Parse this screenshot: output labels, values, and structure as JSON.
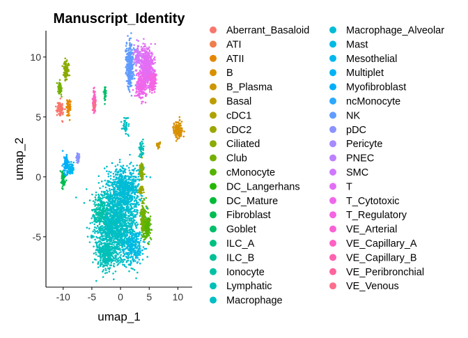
{
  "chart_data": {
    "type": "scatter",
    "title": "Manuscript_Identity",
    "xlabel": "umap_1",
    "ylabel": "umap_2",
    "xlim": [
      -13,
      12.5
    ],
    "ylim": [
      -9.2,
      12.2
    ],
    "x_ticks": [
      -10,
      -5,
      0,
      5,
      10
    ],
    "y_ticks": [
      -5,
      0,
      5,
      10
    ],
    "x_tick_labels": [
      "-10",
      "-5",
      "0",
      "5",
      "10"
    ],
    "y_tick_labels": [
      "-5",
      "0",
      "5",
      "10"
    ],
    "grid": false,
    "legend_position": "right",
    "series": [
      {
        "name": "Aberrant_Basaloid",
        "color": "#F8766D"
      },
      {
        "name": "ATI",
        "color": "#F07E4C"
      },
      {
        "name": "ATII",
        "color": "#E58700"
      },
      {
        "name": "B",
        "color": "#D89000"
      },
      {
        "name": "B_Plasma",
        "color": "#CC9600"
      },
      {
        "name": "Basal",
        "color": "#BE9C00"
      },
      {
        "name": "cDC1",
        "color": "#AEA200"
      },
      {
        "name": "cDC2",
        "color": "#9DA700"
      },
      {
        "name": "Ciliated",
        "color": "#8AAB00"
      },
      {
        "name": "Club",
        "color": "#73B000"
      },
      {
        "name": "cMonocyte",
        "color": "#55B300"
      },
      {
        "name": "DC_Langerhans",
        "color": "#24B700"
      },
      {
        "name": "DC_Mature",
        "color": "#00BA38"
      },
      {
        "name": "Fibroblast",
        "color": "#00BC52"
      },
      {
        "name": "Goblet",
        "color": "#00BE6A"
      },
      {
        "name": "ILC_A",
        "color": "#00C07F"
      },
      {
        "name": "ILC_B",
        "color": "#00C094"
      },
      {
        "name": "Ionocyte",
        "color": "#00C1A6"
      },
      {
        "name": "Lymphatic",
        "color": "#00C0B8"
      },
      {
        "name": "Macrophage",
        "color": "#00BFC4"
      },
      {
        "name": "Macrophage_Alveolar",
        "color": "#00BCD6"
      },
      {
        "name": "Mast",
        "color": "#00BAE4"
      },
      {
        "name": "Mesothelial",
        "color": "#00B7EE"
      },
      {
        "name": "Multiplet",
        "color": "#00B3F4"
      },
      {
        "name": "Myofibroblast",
        "color": "#00AEFA"
      },
      {
        "name": "ncMonocyte",
        "color": "#2CA8FF"
      },
      {
        "name": "NK",
        "color": "#619CFF"
      },
      {
        "name": "pDC",
        "color": "#8B93FF"
      },
      {
        "name": "Pericyte",
        "color": "#A68AFF"
      },
      {
        "name": "PNEC",
        "color": "#BD80FF"
      },
      {
        "name": "SMC",
        "color": "#CF78FF"
      },
      {
        "name": "T",
        "color": "#E36EF6"
      },
      {
        "name": "T_Cytotoxic",
        "color": "#EF67EB"
      },
      {
        "name": "T_Regulatory",
        "color": "#F564E3"
      },
      {
        "name": "VE_Arterial",
        "color": "#FA62D4"
      },
      {
        "name": "VE_Capillary_A",
        "color": "#FF61C3"
      },
      {
        "name": "VE_Capillary_B",
        "color": "#FF62B0"
      },
      {
        "name": "VE_Peribronchial",
        "color": "#FF659C"
      },
      {
        "name": "VE_Venous",
        "color": "#FC6E8A"
      }
    ],
    "clusters": [
      {
        "series": "Macrophage",
        "cx": -0.8,
        "cy": -4.0,
        "sx": 2.9,
        "sy": 2.6,
        "n": 1500
      },
      {
        "series": "Macrophage_Alveolar",
        "cx": 0.8,
        "cy": -1.0,
        "sx": 2.2,
        "sy": 1.6,
        "n": 650
      },
      {
        "series": "Lymphatic",
        "cx": -2.5,
        "cy": -6.5,
        "sx": 1.4,
        "sy": 1.0,
        "n": 260
      },
      {
        "series": "Mast",
        "cx": 2.2,
        "cy": -5.8,
        "sx": 1.5,
        "sy": 1.1,
        "n": 220
      },
      {
        "series": "Ionocyte",
        "cx": -3.5,
        "cy": -2.8,
        "sx": 1.0,
        "sy": 1.0,
        "n": 150
      },
      {
        "series": "cMonocyte",
        "cx": 4.5,
        "cy": -4.2,
        "sx": 0.55,
        "sy": 0.9,
        "n": 200
      },
      {
        "series": "Club",
        "cx": 3.9,
        "cy": -3.3,
        "sx": 0.4,
        "sy": 0.9,
        "n": 110
      },
      {
        "series": "Ciliated",
        "cx": 3.7,
        "cy": 0.4,
        "sx": 0.3,
        "sy": 0.7,
        "n": 60
      },
      {
        "series": "cDC2",
        "cx": 3.6,
        "cy": -1.1,
        "sx": 0.3,
        "sy": 0.3,
        "n": 40
      },
      {
        "series": "NK",
        "cx": 1.6,
        "cy": 9.3,
        "sx": 0.5,
        "sy": 1.5,
        "n": 350
      },
      {
        "series": "T",
        "cx": 4.6,
        "cy": 9.2,
        "sx": 1.0,
        "sy": 1.3,
        "n": 520
      },
      {
        "series": "T_Cytotoxic",
        "cx": 3.6,
        "cy": 7.6,
        "sx": 0.8,
        "sy": 0.9,
        "n": 210
      },
      {
        "series": "T_Regulatory",
        "cx": 5.6,
        "cy": 7.9,
        "sx": 0.5,
        "sy": 0.7,
        "n": 120
      },
      {
        "series": "SMC",
        "cx": 2.9,
        "cy": 10.2,
        "sx": 0.5,
        "sy": 0.8,
        "n": 70
      },
      {
        "series": "B",
        "cx": 10.0,
        "cy": 3.9,
        "sx": 0.6,
        "sy": 0.5,
        "n": 200
      },
      {
        "series": "B_Plasma",
        "cx": 6.6,
        "cy": 2.7,
        "sx": 0.25,
        "sy": 0.2,
        "n": 35
      },
      {
        "series": "Fibroblast",
        "cx": -10.0,
        "cy": -0.3,
        "sx": 0.3,
        "sy": 0.6,
        "n": 70
      },
      {
        "series": "Myofibroblast",
        "cx": -9.5,
        "cy": 1.0,
        "sx": 0.4,
        "sy": 0.8,
        "n": 80
      },
      {
        "series": "Mesothelial",
        "cx": -8.7,
        "cy": 0.7,
        "sx": 0.5,
        "sy": 0.4,
        "n": 60
      },
      {
        "series": "pDC",
        "cx": -7.4,
        "cy": 1.6,
        "sx": 0.3,
        "sy": 0.4,
        "n": 40
      },
      {
        "series": "Ciliated",
        "cx": -9.5,
        "cy": 8.9,
        "sx": 0.35,
        "sy": 0.6,
        "n": 110
      },
      {
        "series": "Aberrant_Basaloid",
        "cx": -10.5,
        "cy": 5.7,
        "sx": 0.5,
        "sy": 0.5,
        "n": 90
      },
      {
        "series": "ATII",
        "cx": -9.0,
        "cy": 5.9,
        "sx": 0.35,
        "sy": 0.6,
        "n": 60
      },
      {
        "series": "Club",
        "cx": -10.6,
        "cy": 7.4,
        "sx": 0.3,
        "sy": 0.5,
        "n": 60
      },
      {
        "series": "VE_Capillary_A",
        "cx": -4.6,
        "cy": 6.4,
        "sx": 0.2,
        "sy": 0.9,
        "n": 90
      },
      {
        "series": "VE_Venous",
        "cx": -4.6,
        "cy": 6.0,
        "sx": 0.2,
        "sy": 0.4,
        "n": 40
      },
      {
        "series": "Goblet",
        "cx": -2.7,
        "cy": 6.9,
        "sx": 0.15,
        "sy": 0.5,
        "n": 35
      },
      {
        "series": "Macrophage",
        "cx": 0.9,
        "cy": 4.3,
        "sx": 0.5,
        "sy": 0.6,
        "n": 45
      },
      {
        "series": "Lymphatic",
        "cx": 3.6,
        "cy": 2.3,
        "sx": 0.3,
        "sy": 0.6,
        "n": 40
      }
    ]
  }
}
